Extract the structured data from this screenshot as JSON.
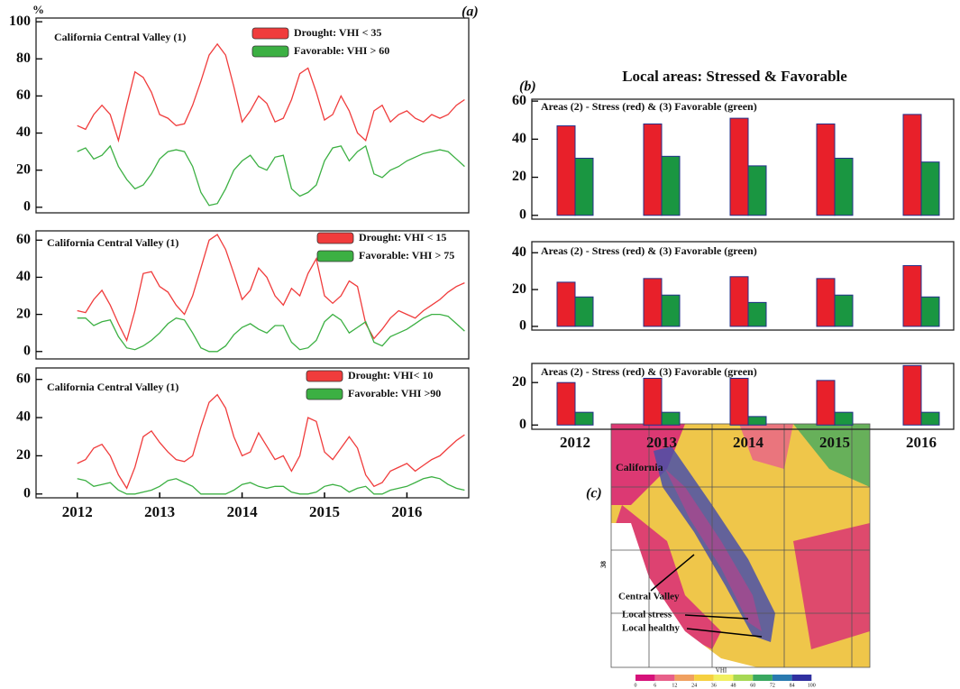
{
  "y_unit": "%",
  "panel_labels": {
    "a": "(a)",
    "b": "(b)",
    "c": "(c)"
  },
  "panel_b_title": "Local areas: Stressed & Favorable",
  "chart_data": [
    {
      "type": "line",
      "title": "California Central Valley (1)",
      "x": [
        2012,
        2012.1,
        2012.2,
        2012.3,
        2012.4,
        2012.5,
        2012.6,
        2012.7,
        2012.8,
        2012.9,
        2013,
        2013.1,
        2013.2,
        2013.3,
        2013.4,
        2013.5,
        2013.6,
        2013.7,
        2013.8,
        2013.9,
        2014,
        2014.1,
        2014.2,
        2014.3,
        2014.4,
        2014.5,
        2014.6,
        2014.7,
        2014.8,
        2014.9,
        2015,
        2015.1,
        2015.2,
        2015.3,
        2015.4,
        2015.5,
        2015.6,
        2015.7,
        2015.8,
        2015.9,
        2016,
        2016.1,
        2016.2,
        2016.3,
        2016.4,
        2016.5,
        2016.6,
        2016.7
      ],
      "xlim": [
        2011.5,
        2016.75
      ],
      "ylim": [
        -3,
        102
      ],
      "yticks": [
        0,
        20,
        40,
        60,
        80,
        100
      ],
      "series": [
        {
          "name": "Drought: VHI < 35",
          "color": "#f03c3c",
          "values": [
            44,
            42,
            50,
            55,
            50,
            36,
            55,
            73,
            70,
            62,
            50,
            48,
            44,
            45,
            55,
            68,
            82,
            88,
            82,
            65,
            46,
            52,
            60,
            56,
            46,
            48,
            58,
            72,
            75,
            62,
            47,
            50,
            60,
            52,
            40,
            36,
            52,
            55,
            46,
            50,
            52,
            48,
            46,
            50,
            48,
            50,
            55,
            58
          ]
        },
        {
          "name": "Favorable: VHI > 60",
          "color": "#3cb043",
          "values": [
            30,
            32,
            26,
            28,
            33,
            22,
            15,
            10,
            12,
            18,
            26,
            30,
            31,
            30,
            22,
            8,
            1,
            2,
            10,
            20,
            25,
            28,
            22,
            20,
            27,
            28,
            10,
            6,
            8,
            12,
            25,
            32,
            33,
            25,
            30,
            33,
            18,
            16,
            20,
            22,
            25,
            27,
            29,
            30,
            31,
            30,
            26,
            22
          ]
        }
      ]
    },
    {
      "type": "line",
      "title": "California Central Valley (1)",
      "x": [
        2012,
        2012.1,
        2012.2,
        2012.3,
        2012.4,
        2012.5,
        2012.6,
        2012.7,
        2012.8,
        2012.9,
        2013,
        2013.1,
        2013.2,
        2013.3,
        2013.4,
        2013.5,
        2013.6,
        2013.7,
        2013.8,
        2013.9,
        2014,
        2014.1,
        2014.2,
        2014.3,
        2014.4,
        2014.5,
        2014.6,
        2014.7,
        2014.8,
        2014.9,
        2015,
        2015.1,
        2015.2,
        2015.3,
        2015.4,
        2015.5,
        2015.6,
        2015.7,
        2015.8,
        2015.9,
        2016,
        2016.1,
        2016.2,
        2016.3,
        2016.4,
        2016.5,
        2016.6,
        2016.7
      ],
      "xlim": [
        2011.5,
        2016.75
      ],
      "ylim": [
        -4,
        65
      ],
      "yticks": [
        0,
        20,
        40,
        60
      ],
      "series": [
        {
          "name": "Drought: VHI < 15",
          "color": "#f03c3c",
          "values": [
            22,
            21,
            28,
            33,
            25,
            15,
            6,
            22,
            42,
            43,
            35,
            32,
            25,
            20,
            30,
            45,
            60,
            63,
            55,
            42,
            28,
            33,
            45,
            40,
            30,
            25,
            34,
            30,
            42,
            50,
            30,
            26,
            30,
            38,
            35,
            15,
            7,
            12,
            18,
            22,
            20,
            18,
            22,
            25,
            28,
            32,
            35,
            37
          ]
        },
        {
          "name": "Favorable: VHI > 75",
          "color": "#3cb043",
          "values": [
            18,
            18,
            14,
            16,
            17,
            8,
            2,
            1,
            3,
            6,
            10,
            15,
            18,
            17,
            10,
            2,
            0,
            0,
            3,
            9,
            13,
            15,
            12,
            10,
            14,
            14,
            5,
            1,
            2,
            6,
            16,
            20,
            17,
            10,
            13,
            16,
            5,
            3,
            8,
            10,
            12,
            15,
            18,
            20,
            20,
            19,
            15,
            11
          ]
        }
      ]
    },
    {
      "type": "line",
      "title": "California Central Valley (1)",
      "x": [
        2012,
        2012.1,
        2012.2,
        2012.3,
        2012.4,
        2012.5,
        2012.6,
        2012.7,
        2012.8,
        2012.9,
        2013,
        2013.1,
        2013.2,
        2013.3,
        2013.4,
        2013.5,
        2013.6,
        2013.7,
        2013.8,
        2013.9,
        2014,
        2014.1,
        2014.2,
        2014.3,
        2014.4,
        2014.5,
        2014.6,
        2014.7,
        2014.8,
        2014.9,
        2015,
        2015.1,
        2015.2,
        2015.3,
        2015.4,
        2015.5,
        2015.6,
        2015.7,
        2015.8,
        2015.9,
        2016,
        2016.1,
        2016.2,
        2016.3,
        2016.4,
        2016.5,
        2016.6,
        2016.7
      ],
      "xlim": [
        2011.5,
        2016.75
      ],
      "xticks": [
        2012,
        2013,
        2014,
        2015,
        2016
      ],
      "ylim": [
        -2,
        66
      ],
      "yticks": [
        0,
        20,
        40,
        60
      ],
      "series": [
        {
          "name": "Drought: VHI< 10",
          "color": "#f03c3c",
          "values": [
            16,
            18,
            24,
            26,
            20,
            10,
            3,
            14,
            30,
            33,
            27,
            22,
            18,
            17,
            20,
            35,
            48,
            52,
            45,
            30,
            20,
            22,
            32,
            25,
            18,
            20,
            12,
            20,
            40,
            38,
            22,
            18,
            24,
            30,
            24,
            10,
            4,
            6,
            12,
            14,
            16,
            12,
            15,
            18,
            20,
            24,
            28,
            31
          ]
        },
        {
          "name": "Favorable: VHI >90",
          "color": "#3cb043",
          "values": [
            8,
            7,
            4,
            5,
            6,
            2,
            0,
            0,
            1,
            2,
            4,
            7,
            8,
            6,
            4,
            0,
            0,
            0,
            0,
            2,
            5,
            6,
            4,
            3,
            4,
            4,
            1,
            0,
            0,
            1,
            4,
            5,
            4,
            1,
            3,
            4,
            0,
            0,
            2,
            3,
            4,
            6,
            8,
            9,
            8,
            5,
            3,
            2
          ]
        }
      ]
    },
    {
      "type": "bar",
      "title": "Areas (2) - Stress (red) & (3) Favorable (green)",
      "ylim": [
        -2,
        61
      ],
      "yticks": [
        0,
        20,
        40,
        60
      ],
      "series": [
        {
          "color": "#e8202a",
          "values": [
            47,
            48,
            51,
            48,
            53
          ]
        },
        {
          "color": "#1a9641",
          "values": [
            30,
            31,
            26,
            30,
            28
          ]
        }
      ]
    },
    {
      "type": "bar",
      "title": "Areas (2) - Stress (red) & (3) Favorable (green)",
      "ylim": [
        -2,
        46
      ],
      "yticks": [
        0,
        20,
        40
      ],
      "series": [
        {
          "color": "#e8202a",
          "values": [
            24,
            26,
            27,
            26,
            33
          ]
        },
        {
          "color": "#1a9641",
          "values": [
            16,
            17,
            13,
            17,
            16
          ]
        }
      ]
    },
    {
      "type": "bar",
      "title": "Areas (2) - Stress (red) & (3) Favorable (green)",
      "categories": [
        "2012",
        "2013",
        "2014",
        "2015",
        "2016"
      ],
      "ylim": [
        -2,
        29
      ],
      "yticks": [
        0,
        20
      ],
      "series": [
        {
          "color": "#e8202a",
          "values": [
            20,
            22,
            22,
            21,
            28
          ]
        },
        {
          "color": "#1a9641",
          "values": [
            6,
            6,
            4,
            6,
            6
          ]
        }
      ]
    }
  ],
  "map": {
    "labels": {
      "region": "California",
      "valley": "Central Valley",
      "stress": "Local stress",
      "healthy": "Local healthy",
      "latitude": "38",
      "colorbar_title": "VHI"
    },
    "colorbar": {
      "ticks": [
        0,
        6,
        12,
        24,
        36,
        48,
        60,
        72,
        84,
        100
      ],
      "colors": [
        "#d6127a",
        "#e8608a",
        "#f0a060",
        "#f6d040",
        "#f2f060",
        "#a6d854",
        "#3aa860",
        "#2a7ab0",
        "#3030a0"
      ]
    }
  }
}
